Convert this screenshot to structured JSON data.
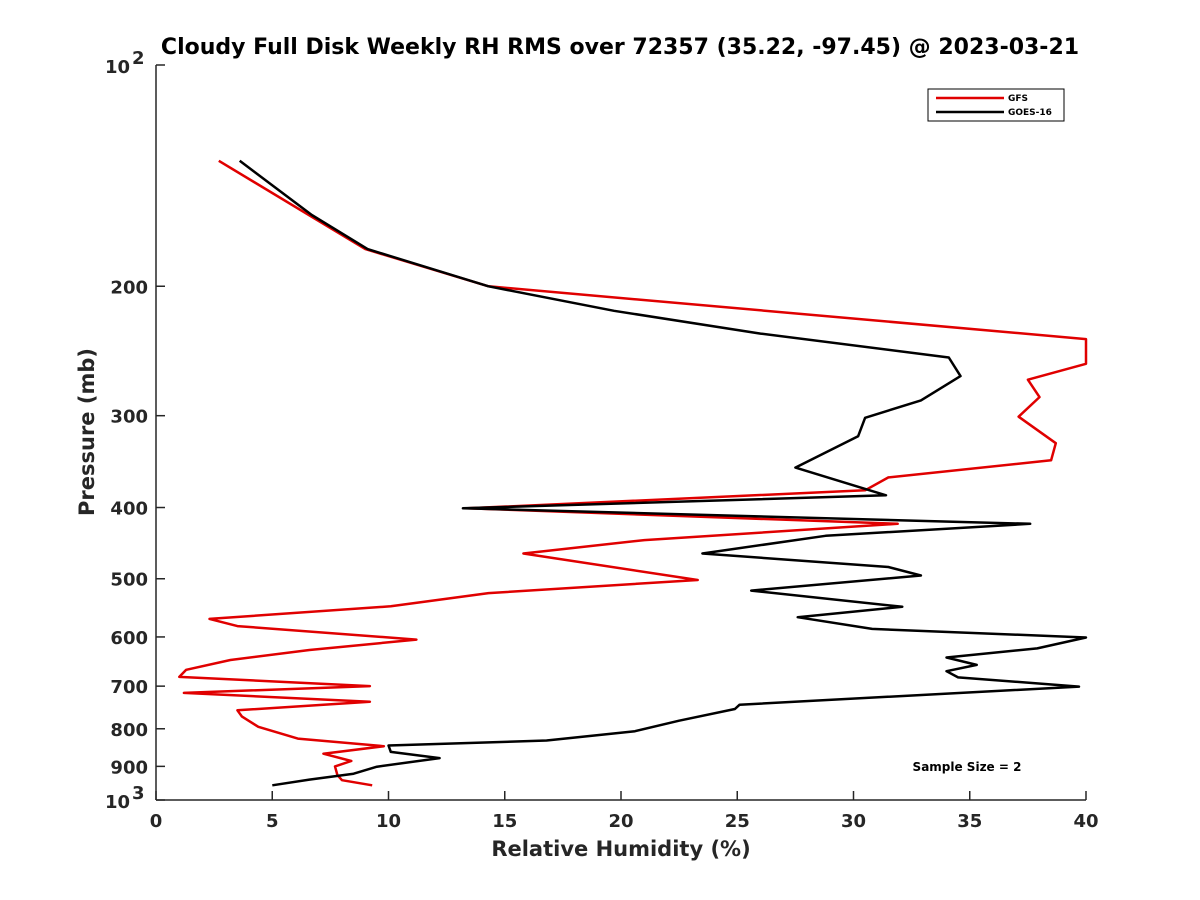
{
  "chart_data": {
    "type": "line",
    "title": "Cloudy Full Disk Weekly RH RMS over 72357 (35.22, -97.45) @ 2023-03-21",
    "xlabel": "Relative Humidity (%)",
    "ylabel": "Pressure (mb)",
    "xlim": [
      0,
      40
    ],
    "ylim": [
      100,
      1000
    ],
    "yscale": "log",
    "y_reversed": true,
    "grid": false,
    "legend_position": "top-right",
    "x_ticks": [
      "0",
      "5",
      "10",
      "15",
      "20",
      "25",
      "30",
      "35",
      "40"
    ],
    "y_ticks": [
      {
        "value": 100,
        "base": "10",
        "exp": "2"
      },
      {
        "value": 200,
        "label": "200"
      },
      {
        "value": 300,
        "label": "300"
      },
      {
        "value": 400,
        "label": "400"
      },
      {
        "value": 500,
        "label": "500"
      },
      {
        "value": 600,
        "label": "600"
      },
      {
        "value": 700,
        "label": "700"
      },
      {
        "value": 800,
        "label": "800"
      },
      {
        "value": 900,
        "label": "900"
      },
      {
        "value": 1000,
        "base": "10",
        "exp": "3"
      }
    ],
    "annotation": "Sample Size = 2",
    "series": [
      {
        "name": "GFS",
        "color": "#e00000",
        "points": [
          [
            2.7,
            135
          ],
          [
            9.0,
            178
          ],
          [
            14.3,
            200
          ],
          [
            40,
            236
          ],
          [
            40,
            255
          ],
          [
            37.5,
            268
          ],
          [
            38.0,
            283
          ],
          [
            37.1,
            301
          ],
          [
            38.7,
            327
          ],
          [
            38.5,
            345
          ],
          [
            31.5,
            364
          ],
          [
            30.5,
            379
          ],
          [
            13.4,
            401
          ],
          [
            31.9,
            421
          ],
          [
            21.0,
            443
          ],
          [
            15.8,
            462
          ],
          [
            23.3,
            502
          ],
          [
            14.3,
            523
          ],
          [
            10.1,
            545
          ],
          [
            2.3,
            567
          ],
          [
            3.5,
            580
          ],
          [
            11.2,
            605
          ],
          [
            6.6,
            625
          ],
          [
            3.2,
            645
          ],
          [
            1.3,
            665
          ],
          [
            1.0,
            680
          ],
          [
            9.2,
            700
          ],
          [
            1.2,
            715
          ],
          [
            9.2,
            735
          ],
          [
            3.5,
            755
          ],
          [
            3.7,
            770
          ],
          [
            4.4,
            795
          ],
          [
            6.1,
            825
          ],
          [
            9.8,
            845
          ],
          [
            7.2,
            865
          ],
          [
            8.4,
            885
          ],
          [
            7.7,
            900
          ],
          [
            7.8,
            925
          ],
          [
            8.0,
            940
          ],
          [
            9.3,
            955
          ]
        ]
      },
      {
        "name": "GOES-16",
        "color": "#000000",
        "points": [
          [
            3.6,
            135
          ],
          [
            6.7,
            160
          ],
          [
            9.1,
            178
          ],
          [
            14.3,
            200
          ],
          [
            19.7,
            216
          ],
          [
            26.0,
            232
          ],
          [
            34.1,
            250
          ],
          [
            34.6,
            265
          ],
          [
            32.9,
            286
          ],
          [
            30.5,
            302
          ],
          [
            30.2,
            320
          ],
          [
            27.5,
            353
          ],
          [
            31.4,
            385
          ],
          [
            13.2,
            401
          ],
          [
            37.6,
            421
          ],
          [
            28.8,
            437
          ],
          [
            23.5,
            462
          ],
          [
            31.5,
            482
          ],
          [
            32.9,
            495
          ],
          [
            25.6,
            519
          ],
          [
            32.1,
            546
          ],
          [
            27.6,
            564
          ],
          [
            30.8,
            585
          ],
          [
            40.0,
            601
          ],
          [
            37.9,
            622
          ],
          [
            34.0,
            640
          ],
          [
            35.3,
            655
          ],
          [
            34.0,
            668
          ],
          [
            34.5,
            681
          ],
          [
            39.7,
            701
          ],
          [
            25.1,
            742
          ],
          [
            24.9,
            752
          ],
          [
            22.5,
            780
          ],
          [
            20.6,
            806
          ],
          [
            16.8,
            830
          ],
          [
            10.0,
            843
          ],
          [
            10.1,
            860
          ],
          [
            12.2,
            877
          ],
          [
            9.5,
            901
          ],
          [
            8.5,
            921
          ],
          [
            6.6,
            938
          ],
          [
            5.0,
            955
          ]
        ]
      }
    ]
  }
}
